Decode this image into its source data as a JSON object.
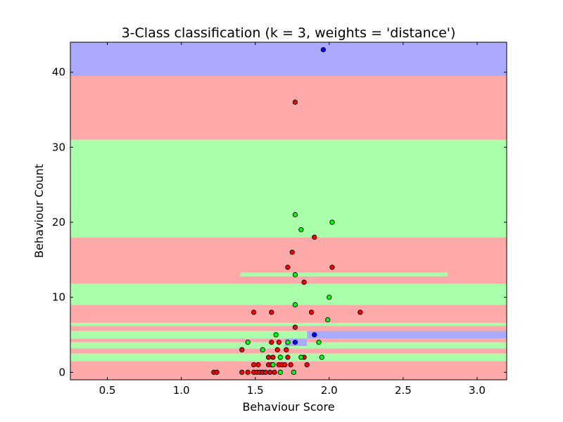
{
  "chart_data": {
    "type": "scatter",
    "title": "3-Class classification (k = 3, weights = 'distance')",
    "xlabel": "Behaviour Score",
    "ylabel": "Behaviour Count",
    "xlim": [
      0.25,
      3.2
    ],
    "ylim": [
      -1,
      44
    ],
    "xticks": [
      0.5,
      1.0,
      1.5,
      2.0,
      2.5,
      3.0
    ],
    "xtick_labels": [
      "0.5",
      "1.0",
      "1.5",
      "2.0",
      "2.5",
      "3.0"
    ],
    "yticks": [
      0,
      10,
      20,
      30,
      40
    ],
    "ytick_labels": [
      "0",
      "10",
      "20",
      "30",
      "40"
    ],
    "grid": false,
    "legend": "none",
    "colors": {
      "class_red_point": "#ff0000",
      "class_green_point": "#00ff00",
      "class_blue_point": "#0000ff",
      "region_red": "#ffaaaa",
      "region_green": "#aaffaa",
      "region_blue": "#aaaaff",
      "point_edge": "#000000"
    },
    "regions": [
      {
        "class": "red",
        "x0": 0.25,
        "x1": 3.2,
        "y0": -1,
        "y1": 1.5
      },
      {
        "class": "green",
        "x0": 0.25,
        "x1": 3.2,
        "y0": 1.5,
        "y1": 2.5
      },
      {
        "class": "red",
        "x0": 0.25,
        "x1": 3.2,
        "y0": 2.5,
        "y1": 3.2
      },
      {
        "class": "green",
        "x0": 0.25,
        "x1": 3.2,
        "y0": 3.2,
        "y1": 4.0
      },
      {
        "class": "red",
        "x0": 0.25,
        "x1": 3.2,
        "y0": 4.0,
        "y1": 4.5
      },
      {
        "class": "green",
        "x0": 0.25,
        "x1": 3.2,
        "y0": 4.5,
        "y1": 5.5
      },
      {
        "class": "blue",
        "x0": 1.85,
        "x1": 3.2,
        "y0": 4.5,
        "y1": 5.5
      },
      {
        "class": "blue",
        "x0": 1.7,
        "x1": 1.85,
        "y0": 3.5,
        "y1": 4.5
      },
      {
        "class": "red",
        "x0": 0.25,
        "x1": 3.2,
        "y0": 5.5,
        "y1": 6.2
      },
      {
        "class": "green",
        "x0": 0.25,
        "x1": 3.2,
        "y0": 6.2,
        "y1": 6.6
      },
      {
        "class": "red",
        "x0": 0.25,
        "x1": 3.2,
        "y0": 6.6,
        "y1": 9.0
      },
      {
        "class": "green",
        "x0": 0.25,
        "x1": 3.2,
        "y0": 9.0,
        "y1": 11.8
      },
      {
        "class": "red",
        "x0": 0.25,
        "x1": 3.2,
        "y0": 11.8,
        "y1": 18.0
      },
      {
        "class": "green",
        "x0": 1.4,
        "x1": 2.8,
        "y0": 12.8,
        "y1": 13.3
      },
      {
        "class": "green",
        "x0": 0.25,
        "x1": 3.2,
        "y0": 18.0,
        "y1": 31.0
      },
      {
        "class": "red",
        "x0": 0.25,
        "x1": 3.2,
        "y0": 31.0,
        "y1": 39.5
      },
      {
        "class": "blue",
        "x0": 0.25,
        "x1": 3.2,
        "y0": 39.5,
        "y1": 44
      }
    ],
    "series": [
      {
        "class": "red",
        "points": [
          [
            1.22,
            0
          ],
          [
            1.24,
            0
          ],
          [
            1.41,
            0
          ],
          [
            1.45,
            0
          ],
          [
            1.49,
            0
          ],
          [
            1.51,
            0
          ],
          [
            1.53,
            0
          ],
          [
            1.55,
            0
          ],
          [
            1.57,
            0
          ],
          [
            1.6,
            0
          ],
          [
            1.63,
            0
          ],
          [
            1.49,
            1
          ],
          [
            1.52,
            1
          ],
          [
            1.59,
            1
          ],
          [
            1.61,
            1
          ],
          [
            1.66,
            1
          ],
          [
            1.68,
            1
          ],
          [
            1.7,
            1
          ],
          [
            1.74,
            1
          ],
          [
            1.85,
            1
          ],
          [
            1.59,
            2
          ],
          [
            1.62,
            2
          ],
          [
            1.67,
            2
          ],
          [
            1.72,
            2
          ],
          [
            1.83,
            2
          ],
          [
            1.41,
            3
          ],
          [
            1.65,
            3
          ],
          [
            1.71,
            3
          ],
          [
            1.61,
            4
          ],
          [
            1.66,
            4
          ],
          [
            1.77,
            6
          ],
          [
            1.49,
            8
          ],
          [
            1.61,
            8
          ],
          [
            1.88,
            8
          ],
          [
            2.21,
            8
          ],
          [
            1.83,
            12
          ],
          [
            1.72,
            14
          ],
          [
            2.02,
            14
          ],
          [
            1.75,
            16
          ],
          [
            1.9,
            18
          ],
          [
            1.77,
            36
          ]
        ]
      },
      {
        "class": "green",
        "points": [
          [
            1.67,
            0
          ],
          [
            1.76,
            0
          ],
          [
            1.62,
            1
          ],
          [
            1.67,
            2
          ],
          [
            1.81,
            2
          ],
          [
            1.95,
            2
          ],
          [
            1.55,
            3
          ],
          [
            1.45,
            4
          ],
          [
            1.72,
            4
          ],
          [
            1.93,
            4
          ],
          [
            1.64,
            5
          ],
          [
            1.99,
            7
          ],
          [
            1.77,
            9
          ],
          [
            2.0,
            10
          ],
          [
            1.77,
            13
          ],
          [
            1.81,
            19
          ],
          [
            2.02,
            20
          ],
          [
            1.77,
            21
          ]
        ]
      },
      {
        "class": "blue",
        "points": [
          [
            1.77,
            4
          ],
          [
            1.9,
            5
          ],
          [
            1.96,
            43
          ]
        ]
      }
    ]
  }
}
